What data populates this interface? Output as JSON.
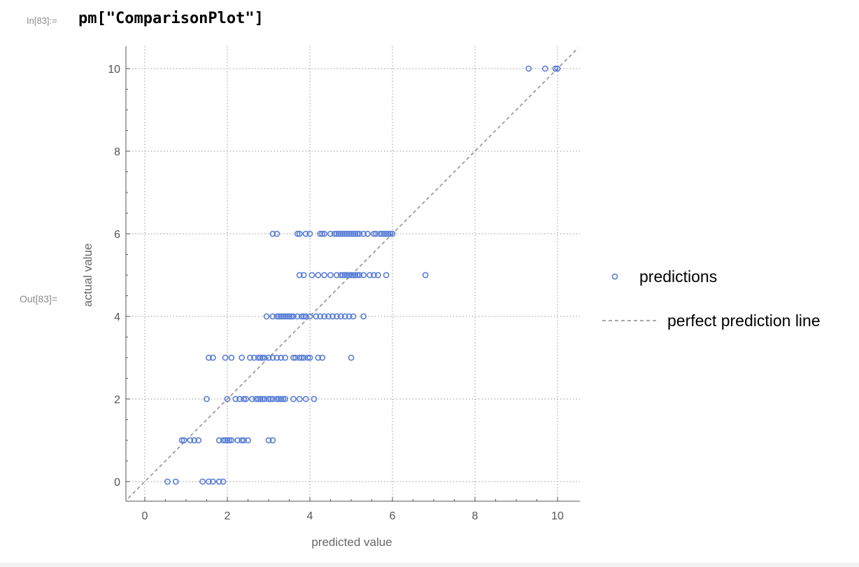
{
  "notebook": {
    "in_label": "In[83]:=",
    "out_label": "Out[83]=",
    "input_code": "pm[\"ComparisonPlot\"]"
  },
  "colors": {
    "points": "#5b7fd6",
    "reference_line": "#8c8c8c",
    "grid": "#a9a9a9",
    "axis": "#555555"
  },
  "chart_data": {
    "type": "scatter",
    "xlabel": "predicted value",
    "ylabel": "actual value",
    "xlim": [
      -0.4,
      10.5
    ],
    "ylim": [
      -0.5,
      10.5
    ],
    "x_ticks": [
      0,
      2,
      4,
      6,
      8,
      10
    ],
    "y_ticks": [
      0,
      2,
      4,
      6,
      8,
      10
    ],
    "grid": true,
    "legend_position": "right",
    "series": [
      {
        "name": "predictions",
        "marker": "open-circle",
        "points": [
          [
            0.55,
            0
          ],
          [
            0.75,
            0
          ],
          [
            1.4,
            0
          ],
          [
            1.55,
            0
          ],
          [
            1.65,
            0
          ],
          [
            1.8,
            0
          ],
          [
            1.9,
            0
          ],
          [
            0.9,
            1
          ],
          [
            0.95,
            1
          ],
          [
            1.1,
            1
          ],
          [
            1.2,
            1
          ],
          [
            1.3,
            1
          ],
          [
            1.8,
            1
          ],
          [
            1.9,
            1
          ],
          [
            1.95,
            1
          ],
          [
            2.0,
            1
          ],
          [
            2.05,
            1
          ],
          [
            2.1,
            1
          ],
          [
            2.25,
            1
          ],
          [
            2.35,
            1
          ],
          [
            2.4,
            1
          ],
          [
            2.5,
            1
          ],
          [
            3.0,
            1
          ],
          [
            3.1,
            1
          ],
          [
            1.5,
            2
          ],
          [
            2.0,
            2
          ],
          [
            2.2,
            2
          ],
          [
            2.3,
            2
          ],
          [
            2.4,
            2
          ],
          [
            2.45,
            2
          ],
          [
            2.6,
            2
          ],
          [
            2.7,
            2
          ],
          [
            2.75,
            2
          ],
          [
            2.8,
            2
          ],
          [
            2.85,
            2
          ],
          [
            2.9,
            2
          ],
          [
            3.0,
            2
          ],
          [
            3.05,
            2
          ],
          [
            3.1,
            2
          ],
          [
            3.2,
            2
          ],
          [
            3.25,
            2
          ],
          [
            3.3,
            2
          ],
          [
            3.35,
            2
          ],
          [
            3.4,
            2
          ],
          [
            3.6,
            2
          ],
          [
            3.75,
            2
          ],
          [
            3.9,
            2
          ],
          [
            4.1,
            2
          ],
          [
            1.55,
            3
          ],
          [
            1.65,
            3
          ],
          [
            1.95,
            3
          ],
          [
            2.1,
            3
          ],
          [
            2.35,
            3
          ],
          [
            2.55,
            3
          ],
          [
            2.65,
            3
          ],
          [
            2.75,
            3
          ],
          [
            2.8,
            3
          ],
          [
            2.85,
            3
          ],
          [
            2.9,
            3
          ],
          [
            3.0,
            3
          ],
          [
            3.1,
            3
          ],
          [
            3.2,
            3
          ],
          [
            3.3,
            3
          ],
          [
            3.4,
            3
          ],
          [
            3.6,
            3
          ],
          [
            3.65,
            3
          ],
          [
            3.75,
            3
          ],
          [
            3.8,
            3
          ],
          [
            3.85,
            3
          ],
          [
            3.95,
            3
          ],
          [
            4.0,
            3
          ],
          [
            4.2,
            3
          ],
          [
            4.3,
            3
          ],
          [
            5.0,
            3
          ],
          [
            2.95,
            4
          ],
          [
            3.1,
            4
          ],
          [
            3.2,
            4
          ],
          [
            3.25,
            4
          ],
          [
            3.3,
            4
          ],
          [
            3.35,
            4
          ],
          [
            3.4,
            4
          ],
          [
            3.45,
            4
          ],
          [
            3.5,
            4
          ],
          [
            3.55,
            4
          ],
          [
            3.6,
            4
          ],
          [
            3.7,
            4
          ],
          [
            3.8,
            4
          ],
          [
            3.85,
            4
          ],
          [
            3.9,
            4
          ],
          [
            4.0,
            4
          ],
          [
            4.15,
            4
          ],
          [
            4.25,
            4
          ],
          [
            4.35,
            4
          ],
          [
            4.45,
            4
          ],
          [
            4.55,
            4
          ],
          [
            4.65,
            4
          ],
          [
            4.75,
            4
          ],
          [
            4.85,
            4
          ],
          [
            4.95,
            4
          ],
          [
            5.05,
            4
          ],
          [
            5.3,
            4
          ],
          [
            3.75,
            5
          ],
          [
            3.85,
            5
          ],
          [
            4.05,
            5
          ],
          [
            4.2,
            5
          ],
          [
            4.35,
            5
          ],
          [
            4.5,
            5
          ],
          [
            4.65,
            5
          ],
          [
            4.75,
            5
          ],
          [
            4.8,
            5
          ],
          [
            4.85,
            5
          ],
          [
            4.9,
            5
          ],
          [
            4.95,
            5
          ],
          [
            5.0,
            5
          ],
          [
            5.05,
            5
          ],
          [
            5.1,
            5
          ],
          [
            5.15,
            5
          ],
          [
            5.2,
            5
          ],
          [
            5.3,
            5
          ],
          [
            5.45,
            5
          ],
          [
            5.55,
            5
          ],
          [
            5.65,
            5
          ],
          [
            5.85,
            5
          ],
          [
            6.8,
            5
          ],
          [
            3.1,
            6
          ],
          [
            3.2,
            6
          ],
          [
            3.7,
            6
          ],
          [
            3.75,
            6
          ],
          [
            3.9,
            6
          ],
          [
            4.0,
            6
          ],
          [
            4.25,
            6
          ],
          [
            4.3,
            6
          ],
          [
            4.35,
            6
          ],
          [
            4.5,
            6
          ],
          [
            4.6,
            6
          ],
          [
            4.65,
            6
          ],
          [
            4.7,
            6
          ],
          [
            4.75,
            6
          ],
          [
            4.8,
            6
          ],
          [
            4.85,
            6
          ],
          [
            4.9,
            6
          ],
          [
            4.95,
            6
          ],
          [
            5.0,
            6
          ],
          [
            5.05,
            6
          ],
          [
            5.1,
            6
          ],
          [
            5.15,
            6
          ],
          [
            5.2,
            6
          ],
          [
            5.3,
            6
          ],
          [
            5.4,
            6
          ],
          [
            5.55,
            6
          ],
          [
            5.6,
            6
          ],
          [
            5.7,
            6
          ],
          [
            5.75,
            6
          ],
          [
            5.8,
            6
          ],
          [
            5.85,
            6
          ],
          [
            5.9,
            6
          ],
          [
            5.95,
            6
          ],
          [
            6.0,
            6
          ],
          [
            9.3,
            10
          ],
          [
            9.7,
            10
          ],
          [
            9.95,
            10
          ],
          [
            10.0,
            10
          ]
        ]
      },
      {
        "name": "perfect prediction line",
        "style": "dashed",
        "points": [
          [
            -0.4,
            -0.4
          ],
          [
            10.5,
            10.5
          ]
        ]
      }
    ]
  }
}
